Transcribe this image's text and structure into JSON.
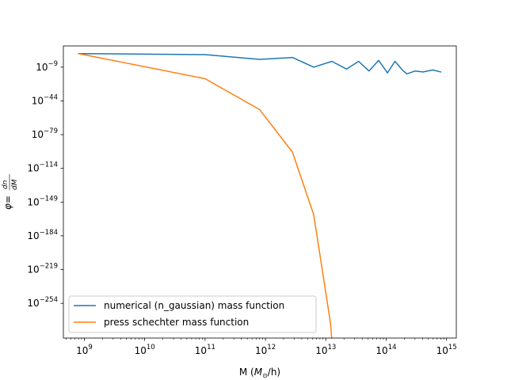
{
  "chart_data": {
    "type": "line",
    "title": "",
    "xscale": "log",
    "yscale": "log",
    "xlim": [
      450000000.0,
      1450000000000000.0
    ],
    "ylim_exponent": [
      -290,
      13
    ],
    "xticks": [
      {
        "value": 1000000000.0,
        "base": "10",
        "exp": "9"
      },
      {
        "value": 10000000000.0,
        "base": "10",
        "exp": "10"
      },
      {
        "value": 100000000000.0,
        "base": "10",
        "exp": "11"
      },
      {
        "value": 1000000000000.0,
        "base": "10",
        "exp": "12"
      },
      {
        "value": 10000000000000.0,
        "base": "10",
        "exp": "13"
      },
      {
        "value": 100000000000000.0,
        "base": "10",
        "exp": "14"
      },
      {
        "value": 1000000000000000.0,
        "base": "10",
        "exp": "15"
      }
    ],
    "yticks": [
      {
        "exponent": -9,
        "base": "10",
        "exp": "−9"
      },
      {
        "exponent": -44,
        "base": "10",
        "exp": "−44"
      },
      {
        "exponent": -79,
        "base": "10",
        "exp": "−79"
      },
      {
        "exponent": -114,
        "base": "10",
        "exp": "−114"
      },
      {
        "exponent": -149,
        "base": "10",
        "exp": "−149"
      },
      {
        "exponent": -184,
        "base": "10",
        "exp": "−184"
      },
      {
        "exponent": -219,
        "base": "10",
        "exp": "−219"
      },
      {
        "exponent": -254,
        "base": "10",
        "exp": "−254"
      }
    ],
    "xlabel": {
      "pre": "M (",
      "italic": "M",
      "sub": "⊙",
      "post": "/h)"
    },
    "ylabel": {
      "phi": "φ",
      "eq": " = ",
      "num": "dn",
      "den": "dM"
    },
    "legend": {
      "placement": "lower-left"
    },
    "series": [
      {
        "name": "numerical (n_gaussian) mass function",
        "color": "#1f77b4",
        "points": [
          [
            800000000.0,
            5
          ],
          [
            100000000000.0,
            4
          ],
          [
            800000000000.0,
            -1
          ],
          [
            2800000000000.0,
            1
          ],
          [
            6300000000000.0,
            -9
          ],
          [
            12600000000000.0,
            -3
          ],
          [
            22000000000000.0,
            -11
          ],
          [
            35000000000000.0,
            -3
          ],
          [
            52000000000000.0,
            -13
          ],
          [
            75000000000000.0,
            -2
          ],
          [
            105000000000000.0,
            -15
          ],
          [
            140000000000000.0,
            -3
          ],
          [
            185000000000000.0,
            -12
          ],
          [
            220000000000000.0,
            -16
          ],
          [
            300000000000000.0,
            -13
          ],
          [
            410000000000000.0,
            -14
          ],
          [
            590000000000000.0,
            -12
          ],
          [
            800000000000000.0,
            -14
          ]
        ]
      },
      {
        "name": "press schechter mass function",
        "color": "#ff7f0e",
        "points": [
          [
            800000000.0,
            5
          ],
          [
            100000000000.0,
            -21
          ],
          [
            800000000000.0,
            -53
          ],
          [
            2800000000000.0,
            -97
          ],
          [
            6300000000000.0,
            -162
          ],
          [
            12000000000000.0,
            -275
          ],
          [
            12500000000000.0,
            -290
          ]
        ]
      }
    ]
  }
}
